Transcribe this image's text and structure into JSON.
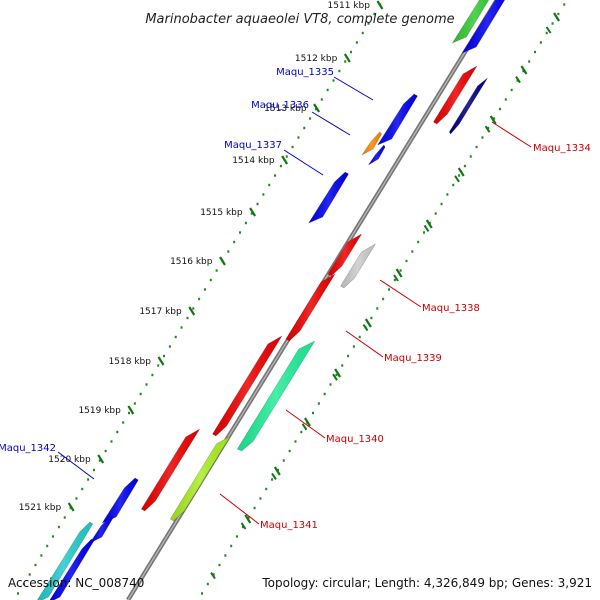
{
  "title": "Marinobacter aquaeolei VT8, complete genome",
  "footer": {
    "accession": "Accession: NC_008740",
    "summary": "Topology: circular; Length: 4,326,849 bp; Genes: 3,921"
  },
  "ticks": [
    "1511 kbp",
    "1512 kbp",
    "1513 kbp",
    "1514 kbp",
    "1515 kbp",
    "1516 kbp",
    "1517 kbp",
    "1518 kbp",
    "1519 kbp",
    "1520 kbp",
    "1521 kbp"
  ],
  "genes_forward": [
    {
      "name": "Maqu_1335",
      "color": "#0000ee"
    },
    {
      "name": "Maqu_1336",
      "color": "#ff8800"
    },
    {
      "name": "Maqu_1337",
      "color": "#0000ee"
    },
    {
      "name": "Maqu_1342",
      "color": "#0000ee"
    }
  ],
  "genes_reverse": [
    {
      "name": "Maqu_1334",
      "color": "#ee0000"
    },
    {
      "name": "Maqu_1338",
      "color": "#cccccc"
    },
    {
      "name": "Maqu_1339",
      "color": "#ee0000"
    },
    {
      "name": "Maqu_1340",
      "color": "#22ee99"
    },
    {
      "name": "Maqu_1341",
      "color": "#aaee22"
    }
  ],
  "colors": {
    "forward_label": "#0000cc",
    "reverse_label": "#cc0000",
    "backbone": "#888888",
    "tick_dot": "#228822"
  }
}
